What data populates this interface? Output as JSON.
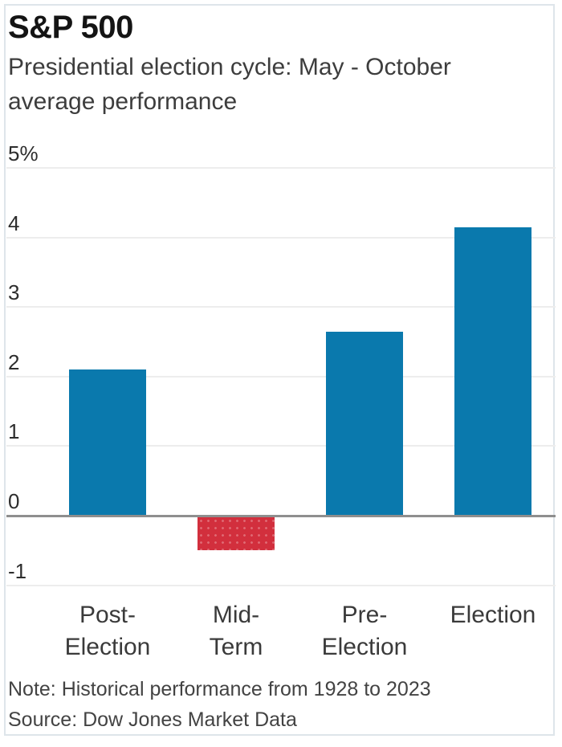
{
  "header": {
    "title": "S&P 500",
    "subtitle": "Presidential election cycle: May - October\naverage performance"
  },
  "chart_data": {
    "type": "bar",
    "title": "S&P 500",
    "subtitle": "Presidential election cycle: May - October average performance",
    "categories": [
      "Post-Election",
      "Mid-Term",
      "Pre-Election",
      "Election"
    ],
    "category_labels": [
      "Post-\nElection",
      "Mid-\nTerm",
      "Pre-\nElection",
      "Election"
    ],
    "values": [
      2.1,
      -0.5,
      2.65,
      4.15
    ],
    "unit": "%",
    "xlabel": "",
    "ylabel": "",
    "ylim": [
      -1,
      5
    ],
    "yticks": [
      {
        "value": 5,
        "label": "5%"
      },
      {
        "value": 4,
        "label": "4"
      },
      {
        "value": 3,
        "label": "3"
      },
      {
        "value": 2,
        "label": "2"
      },
      {
        "value": 1,
        "label": "1"
      },
      {
        "value": 0,
        "label": "0"
      },
      {
        "value": -1,
        "label": "-1"
      }
    ],
    "grid": true,
    "legend": "none",
    "positive_color": "#0a79ad",
    "negative_color": "#d22f3d",
    "zero_axis_color": "#8e8e8e",
    "gridline_color": "#ededed"
  },
  "footer": {
    "note": "Note: Historical performance from 1928 to 2023",
    "source": "Source: Dow Jones Market Data"
  }
}
